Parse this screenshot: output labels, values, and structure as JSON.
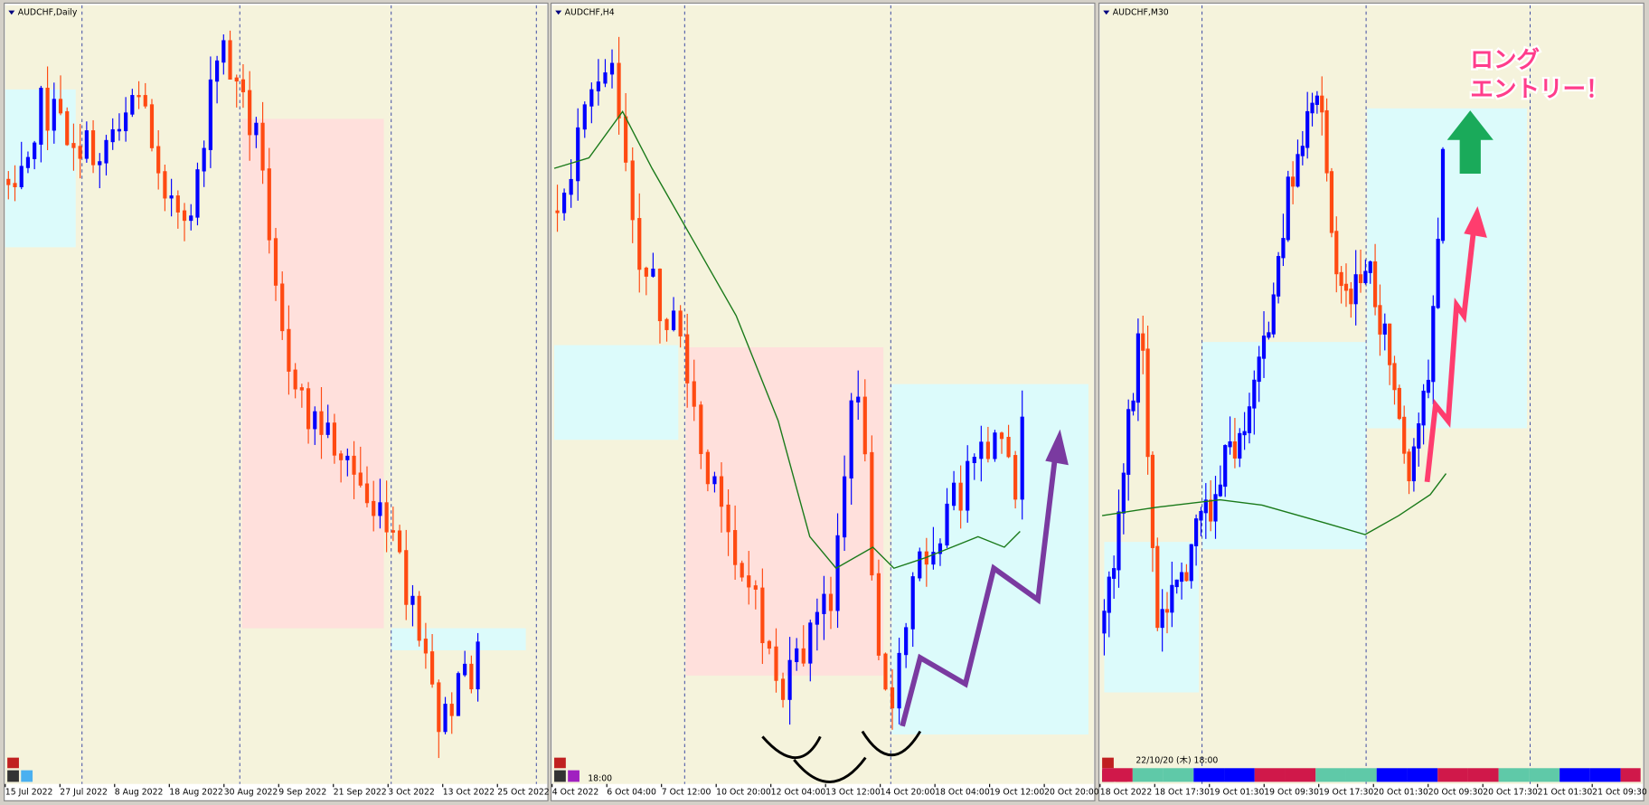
{
  "panels": [
    {
      "title": "AUDCHF,Daily",
      "xlabels": [
        "15 Jul 2022",
        "27 Jul 2022",
        "8 Aug 2022",
        "18 Aug 2022",
        "30 Aug 2022",
        "9 Sep 2022",
        "21 Sep 2022",
        "3 Oct 2022",
        "13 Oct 2022",
        "25 Oct 2022"
      ]
    },
    {
      "title": "AUDCHF,H4",
      "xlabels": [
        "4 Oct 2022",
        "6 Oct 04:00",
        "7 Oct 12:00",
        "10 Oct 20:00",
        "12 Oct 04:00",
        "13 Oct 12:00",
        "14 Oct 20:00",
        "18 Oct 04:00",
        "19 Oct 12:00",
        "20 Oct 20:00"
      ],
      "time": "18:00"
    },
    {
      "title": "AUDCHF,M30",
      "xlabels": [
        "18 Oct 2022",
        "18 Oct 17:30",
        "19 Oct 01:30",
        "19 Oct 09:30",
        "19 Oct 17:30",
        "20 Oct 01:30",
        "20 Oct 09:30",
        "20 Oct 17:30",
        "21 Oct 01:30",
        "21 Oct 09:30"
      ],
      "timestamp": "22/10/20 (木) 18:00"
    }
  ],
  "annotation": {
    "line1": "ロング",
    "line2": "エントリー！"
  }
}
